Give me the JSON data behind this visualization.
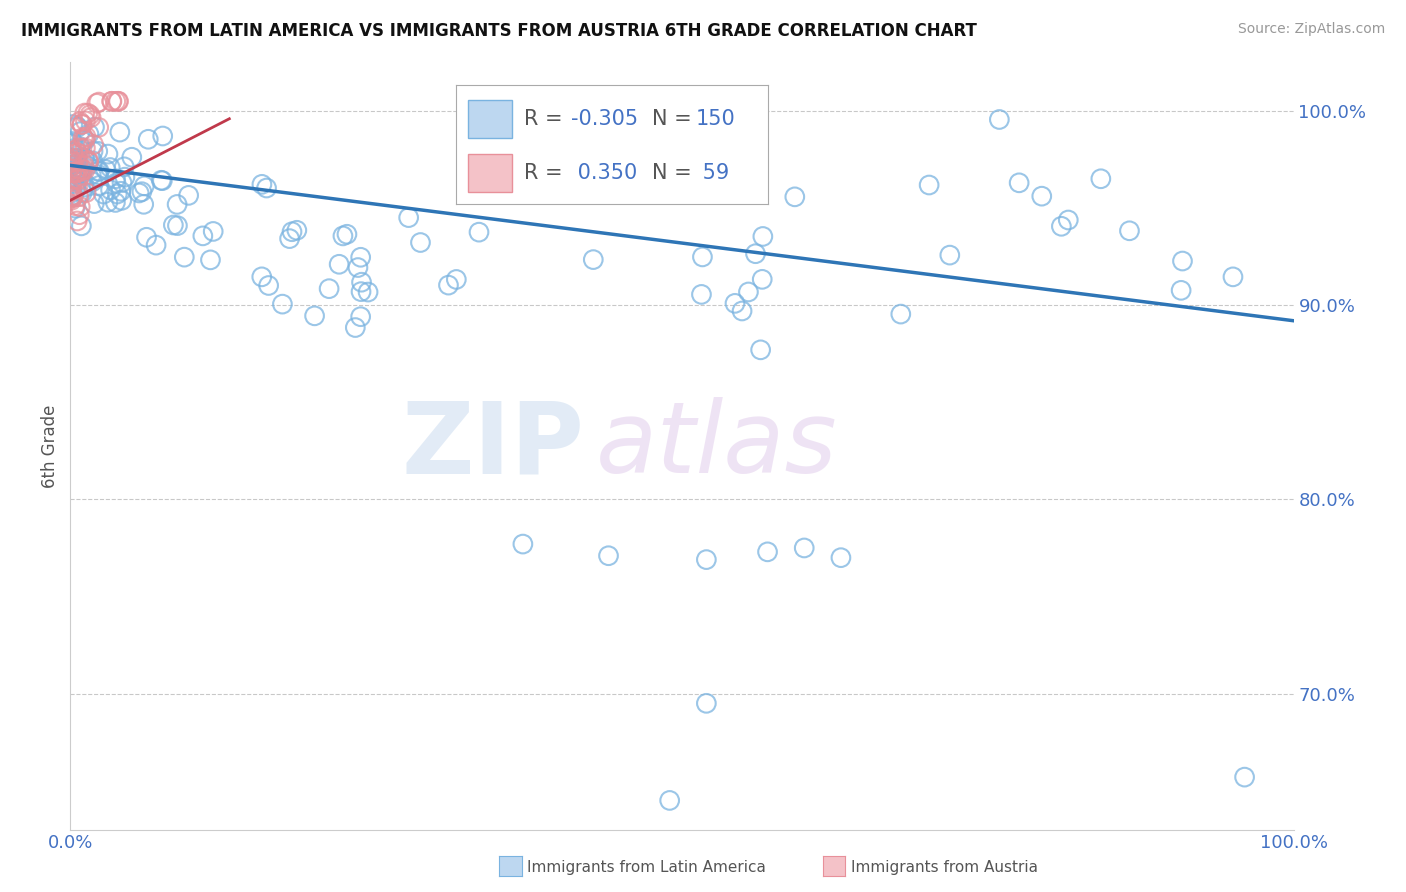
{
  "title": "IMMIGRANTS FROM LATIN AMERICA VS IMMIGRANTS FROM AUSTRIA 6TH GRADE CORRELATION CHART",
  "source": "Source: ZipAtlas.com",
  "ylabel": "6th Grade",
  "xlim": [
    0.0,
    1.0
  ],
  "ylim": [
    0.63,
    1.025
  ],
  "yticks": [
    0.7,
    0.8,
    0.9,
    1.0
  ],
  "ytick_labels": [
    "70.0%",
    "80.0%",
    "90.0%",
    "100.0%"
  ],
  "blue_R": -0.305,
  "blue_N": 150,
  "pink_R": 0.35,
  "pink_N": 59,
  "blue_color": "#7ab3e0",
  "pink_color": "#e8909a",
  "trend_color": "#2e75b6",
  "trend_start_y": 0.972,
  "trend_end_y": 0.892,
  "background_color": "#ffffff",
  "grid_color": "#bbbbbb",
  "axis_color": "#4472c4",
  "watermark_zip": "ZIP",
  "watermark_atlas": "atlas",
  "legend_blue_R": "-0.305",
  "legend_blue_N": "150",
  "legend_pink_R": "0.350",
  "legend_pink_N": "59"
}
